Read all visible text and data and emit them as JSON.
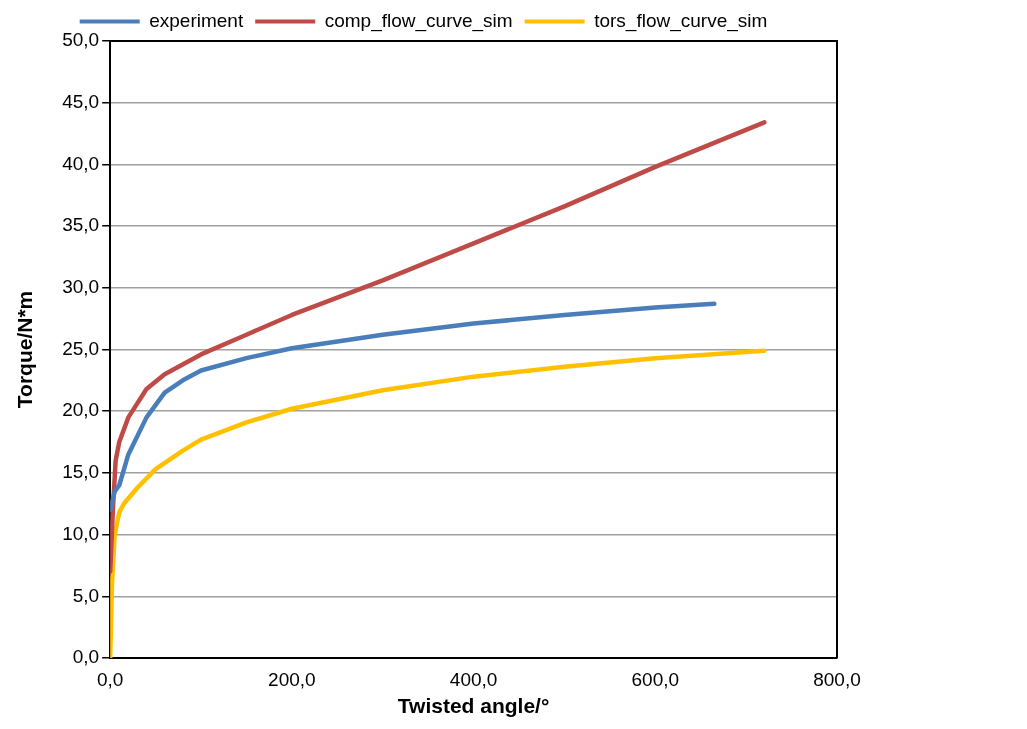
{
  "chart_data": {
    "type": "line",
    "xlabel": "Twisted angle/°",
    "ylabel": "Torque/N*m",
    "series": [
      {
        "name": "experiment",
        "color": "#4a7ebb",
        "x": [
          0,
          5,
          10,
          20,
          40,
          60,
          80,
          100,
          150,
          200,
          300,
          400,
          500,
          600,
          665
        ],
        "values": [
          12,
          13.5,
          14,
          16.5,
          19.5,
          21.5,
          22.5,
          23.3,
          24.3,
          25.1,
          26.2,
          27.1,
          27.8,
          28.4,
          28.7
        ]
      },
      {
        "name": "comp_flow_curve_sim",
        "color": "#be4b48",
        "x": [
          0,
          3,
          6,
          10,
          20,
          40,
          60,
          100,
          150,
          200,
          300,
          400,
          500,
          600,
          720
        ],
        "values": [
          7,
          12,
          16,
          17.5,
          19.5,
          21.8,
          23,
          24.6,
          26.2,
          27.8,
          30.6,
          33.6,
          36.6,
          39.8,
          43.4
        ]
      },
      {
        "name": "tors_flow_curve_sim",
        "color": "#ffc000",
        "x": [
          0,
          2,
          5,
          10,
          15,
          30,
          50,
          80,
          100,
          150,
          200,
          300,
          400,
          500,
          600,
          720
        ],
        "values": [
          0,
          6,
          10,
          11.8,
          12.5,
          13.8,
          15.3,
          16.8,
          17.7,
          19.1,
          20.2,
          21.7,
          22.8,
          23.6,
          24.3,
          24.9
        ]
      }
    ],
    "xlim": [
      0,
      800
    ],
    "xticks": [
      {
        "value": 0,
        "label": "0,0"
      },
      {
        "value": 200,
        "label": "200,0"
      },
      {
        "value": 400,
        "label": "400,0"
      },
      {
        "value": 600,
        "label": "600,0"
      },
      {
        "value": 800,
        "label": "800,0"
      }
    ],
    "ylim": [
      0,
      50
    ],
    "yticks": [
      {
        "value": 0,
        "label": "0,0"
      },
      {
        "value": 5,
        "label": "5,0"
      },
      {
        "value": 10,
        "label": "10,0"
      },
      {
        "value": 15,
        "label": "15,0"
      },
      {
        "value": 20,
        "label": "20,0"
      },
      {
        "value": 25,
        "label": "25,0"
      },
      {
        "value": 30,
        "label": "30,0"
      },
      {
        "value": 35,
        "label": "35,0"
      },
      {
        "value": 40,
        "label": "40,0"
      },
      {
        "value": 45,
        "label": "45,0"
      },
      {
        "value": 50,
        "label": "50,0"
      }
    ],
    "grid": "y",
    "legend": "top",
    "marker": "none",
    "line_style": "solid"
  }
}
